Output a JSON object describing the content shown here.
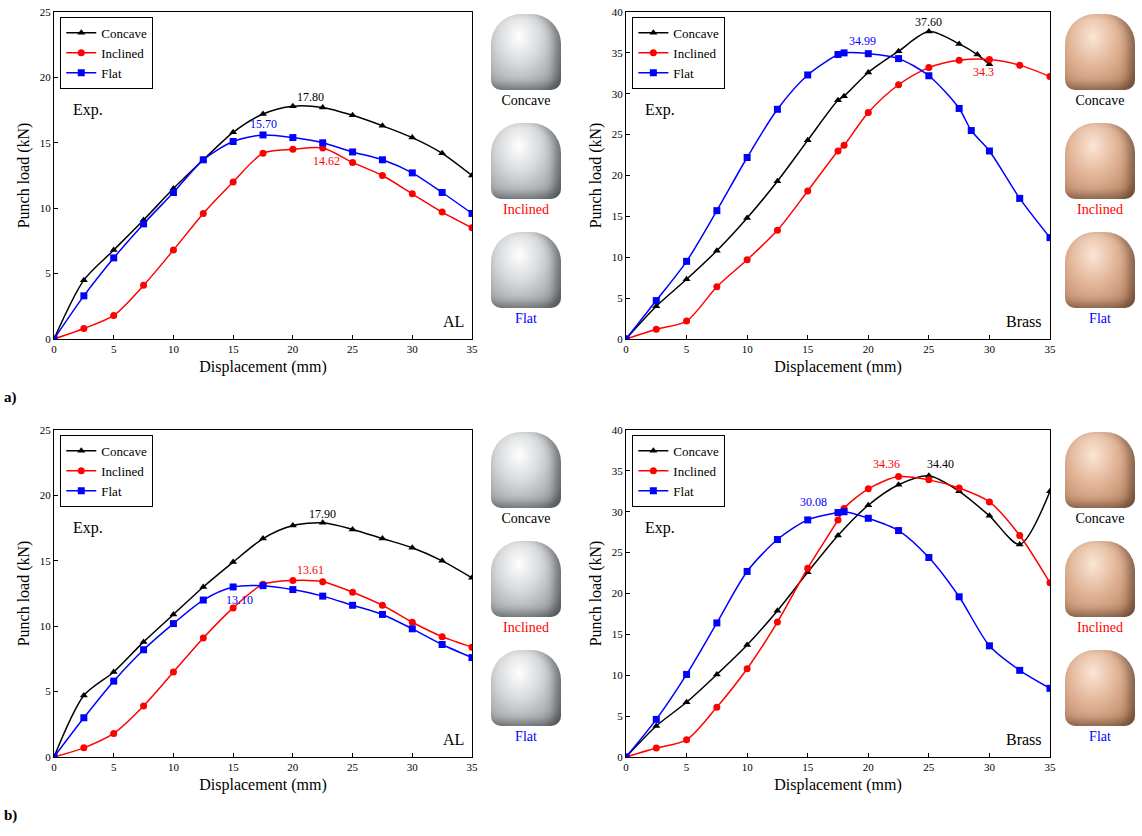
{
  "chart_data": [
    {
      "type": "line",
      "panel": "a)",
      "note": "Exp.",
      "material": "AL",
      "xlabel": "Displacement (mm)",
      "ylabel": "Punch load (kN)",
      "xlim": [
        0,
        35
      ],
      "xticks": [
        0,
        5,
        10,
        15,
        20,
        25,
        30,
        35
      ],
      "ylim": [
        0,
        25
      ],
      "yticks": [
        0,
        5,
        10,
        15,
        20,
        25
      ],
      "grid": false,
      "legend": "upper left",
      "series": [
        {
          "name": "Concave",
          "color": "#000000",
          "marker": "triangle-up",
          "x": [
            0,
            2.5,
            5,
            7.5,
            10,
            12.5,
            15,
            17.5,
            20,
            22.5,
            25,
            27.5,
            30,
            32.5,
            35
          ],
          "values": [
            0,
            4.5,
            6.8,
            9.1,
            11.5,
            13.7,
            15.8,
            17.2,
            17.8,
            17.7,
            17.1,
            16.3,
            15.4,
            14.2,
            12.5
          ]
        },
        {
          "name": "Inclined",
          "color": "#ff0000",
          "marker": "circle",
          "x": [
            0,
            2.5,
            5,
            7.5,
            10,
            12.5,
            15,
            17.5,
            20,
            22.5,
            25,
            27.5,
            30,
            32.5,
            35
          ],
          "values": [
            0,
            0.8,
            1.8,
            4.1,
            6.8,
            9.6,
            12.0,
            14.2,
            14.5,
            14.6,
            13.5,
            12.5,
            11.1,
            9.7,
            8.5
          ]
        },
        {
          "name": "Flat",
          "color": "#0000ff",
          "marker": "square",
          "x": [
            0,
            2.5,
            5,
            7.5,
            10,
            12.5,
            15,
            17.5,
            20,
            22.5,
            25,
            27.5,
            30,
            32.5,
            35
          ],
          "values": [
            0,
            3.3,
            6.2,
            8.8,
            11.2,
            13.7,
            15.1,
            15.6,
            15.4,
            15.0,
            14.3,
            13.7,
            12.7,
            11.2,
            9.6
          ]
        }
      ],
      "annotations": [
        {
          "text": "17.80",
          "x": 21.5,
          "y": 18.5,
          "color": "#000000"
        },
        {
          "text": "15.70",
          "x": 17.5,
          "y": 16.4,
          "color": "#0000ff"
        },
        {
          "text": "14.62",
          "x": 22.8,
          "y": 13.6,
          "color": "#ff0000"
        }
      ],
      "side_labels": [
        {
          "text": "Concave",
          "color": "#000000"
        },
        {
          "text": "Inclined",
          "color": "#ff0000"
        },
        {
          "text": "Flat",
          "color": "#0000ff"
        }
      ]
    },
    {
      "type": "line",
      "note": "Exp.",
      "material": "Brass",
      "xlabel": "Displacement (mm)",
      "ylabel": "Punch load (kN)",
      "xlim": [
        0,
        35
      ],
      "xticks": [
        0,
        5,
        10,
        15,
        20,
        25,
        30,
        35
      ],
      "ylim": [
        0,
        40
      ],
      "yticks": [
        0,
        5,
        10,
        15,
        20,
        25,
        30,
        35,
        40
      ],
      "grid": false,
      "legend": "upper left",
      "series": [
        {
          "name": "Concave",
          "color": "#000000",
          "marker": "triangle-up",
          "x": [
            0,
            2.5,
            5,
            7.5,
            10,
            12.5,
            15,
            17.5,
            18,
            20,
            22.5,
            25,
            27.5,
            29,
            30
          ],
          "values": [
            0,
            4.0,
            7.3,
            10.8,
            14.8,
            19.3,
            24.3,
            29.2,
            29.7,
            32.6,
            35.2,
            37.6,
            36.1,
            34.8,
            33.6
          ]
        },
        {
          "name": "Inclined",
          "color": "#ff0000",
          "marker": "circle",
          "x": [
            0,
            2.5,
            5,
            7.5,
            10,
            12.5,
            15,
            17.5,
            18,
            20,
            22.5,
            25,
            27.5,
            30,
            32.5,
            35
          ],
          "values": [
            0,
            1.2,
            2.2,
            6.4,
            9.7,
            13.3,
            18.1,
            23.0,
            23.7,
            27.7,
            31.1,
            33.2,
            34.1,
            34.2,
            33.5,
            32.1
          ]
        },
        {
          "name": "Flat",
          "color": "#0000ff",
          "marker": "square",
          "x": [
            0,
            2.5,
            5,
            7.5,
            10,
            12.5,
            15,
            17.5,
            18,
            20,
            22.5,
            25,
            27.5,
            28.5,
            30,
            32.5,
            35
          ],
          "values": [
            0,
            4.7,
            9.5,
            15.7,
            22.2,
            28.1,
            32.3,
            34.8,
            35.0,
            34.9,
            34.3,
            32.2,
            28.2,
            25.5,
            23.0,
            17.2,
            12.4
          ]
        }
      ],
      "annotations": [
        {
          "text": "37.60",
          "x": 25,
          "y": 38.8,
          "color": "#000000"
        },
        {
          "text": "34.99",
          "x": 19.5,
          "y": 36.4,
          "color": "#0000ff"
        },
        {
          "text": "34.3",
          "x": 29.5,
          "y": 32.6,
          "color": "#ff0000"
        }
      ],
      "side_labels": [
        {
          "text": "Concave",
          "color": "#000000"
        },
        {
          "text": "Inclined",
          "color": "#ff0000"
        },
        {
          "text": "Flat",
          "color": "#0000ff"
        }
      ]
    },
    {
      "type": "line",
      "panel": "b)",
      "note": "Exp.",
      "material": "AL",
      "xlabel": "Displacement (mm)",
      "ylabel": "Punch load (kN)",
      "xlim": [
        0,
        35
      ],
      "xticks": [
        0,
        5,
        10,
        15,
        20,
        25,
        30,
        35
      ],
      "ylim": [
        0,
        25
      ],
      "yticks": [
        0,
        5,
        10,
        15,
        20,
        25
      ],
      "grid": false,
      "legend": "upper left",
      "series": [
        {
          "name": "Concave",
          "color": "#000000",
          "marker": "triangle-up",
          "x": [
            0,
            2.5,
            5,
            7.5,
            10,
            12.5,
            15,
            17.5,
            20,
            22.5,
            25,
            27.5,
            30,
            32.5,
            35
          ],
          "values": [
            0,
            4.7,
            6.5,
            8.8,
            10.9,
            13.0,
            14.9,
            16.7,
            17.7,
            17.9,
            17.4,
            16.7,
            16.0,
            15.0,
            13.7
          ]
        },
        {
          "name": "Inclined",
          "color": "#ff0000",
          "marker": "circle",
          "x": [
            0,
            2.5,
            5,
            7.5,
            10,
            12.5,
            15,
            17.5,
            20,
            22.5,
            25,
            27.5,
            30,
            32.5,
            35
          ],
          "values": [
            0,
            0.7,
            1.8,
            3.9,
            6.5,
            9.1,
            11.4,
            13.2,
            13.5,
            13.4,
            12.6,
            11.6,
            10.3,
            9.2,
            8.4
          ]
        },
        {
          "name": "Flat",
          "color": "#0000ff",
          "marker": "square",
          "x": [
            0,
            2.5,
            5,
            7.5,
            10,
            12.5,
            15,
            17.5,
            20,
            22.5,
            25,
            27.5,
            30,
            32.5,
            35
          ],
          "values": [
            0,
            3.0,
            5.8,
            8.2,
            10.2,
            12.0,
            13.0,
            13.1,
            12.8,
            12.3,
            11.6,
            10.9,
            9.8,
            8.6,
            7.6
          ]
        }
      ],
      "annotations": [
        {
          "text": "17.90",
          "x": 22.5,
          "y": 18.6,
          "color": "#000000"
        },
        {
          "text": "13.61",
          "x": 21.5,
          "y": 14.3,
          "color": "#ff0000"
        },
        {
          "text": "13.10",
          "x": 15.5,
          "y": 12.0,
          "color": "#0000ff"
        }
      ],
      "side_labels": [
        {
          "text": "Concave",
          "color": "#000000"
        },
        {
          "text": "Inclined",
          "color": "#ff0000"
        },
        {
          "text": "Flat",
          "color": "#0000ff"
        }
      ]
    },
    {
      "type": "line",
      "note": "Exp.",
      "material": "Brass",
      "xlabel": "Displacement (mm)",
      "ylabel": "Punch load (kN)",
      "xlim": [
        0,
        35
      ],
      "xticks": [
        0,
        5,
        10,
        15,
        20,
        25,
        30,
        35
      ],
      "ylim": [
        0,
        40
      ],
      "yticks": [
        0,
        5,
        10,
        15,
        20,
        25,
        30,
        35,
        40
      ],
      "grid": false,
      "legend": "upper left",
      "series": [
        {
          "name": "Concave",
          "color": "#000000",
          "marker": "triangle-up",
          "x": [
            0,
            2.5,
            5,
            7.5,
            10,
            12.5,
            15,
            17.5,
            20,
            22.5,
            25,
            27.5,
            30,
            32.5,
            35
          ],
          "values": [
            0,
            3.8,
            6.7,
            10.1,
            13.7,
            17.9,
            22.6,
            27.1,
            30.8,
            33.3,
            34.4,
            32.5,
            29.5,
            26.0,
            32.5
          ]
        },
        {
          "name": "Inclined",
          "color": "#ff0000",
          "marker": "circle",
          "x": [
            0,
            2.5,
            5,
            7.5,
            10,
            12.5,
            15,
            17.5,
            18,
            20,
            22.5,
            25,
            27.5,
            30,
            32.5,
            35
          ],
          "values": [
            0,
            1.1,
            2.1,
            6.1,
            10.8,
            16.5,
            23.1,
            29.0,
            30.4,
            32.8,
            34.3,
            33.9,
            32.9,
            31.2,
            27.1,
            21.3
          ]
        },
        {
          "name": "Flat",
          "color": "#0000ff",
          "marker": "square",
          "x": [
            0,
            2.5,
            5,
            7.5,
            10,
            12.5,
            15,
            17.5,
            18,
            20,
            22.5,
            25,
            27.5,
            30,
            32.5,
            35
          ],
          "values": [
            0,
            4.6,
            10.1,
            16.4,
            22.7,
            26.6,
            29.0,
            29.9,
            30.0,
            29.2,
            27.7,
            24.4,
            19.6,
            13.6,
            10.6,
            8.4
          ]
        }
      ],
      "annotations": [
        {
          "text": "34.40",
          "x": 26,
          "y": 35.8,
          "color": "#000000"
        },
        {
          "text": "34.36",
          "x": 21.5,
          "y": 35.8,
          "color": "#ff0000"
        },
        {
          "text": "30.08",
          "x": 15.5,
          "y": 31.2,
          "color": "#0000ff"
        }
      ],
      "side_labels": [
        {
          "text": "Concave",
          "color": "#000000"
        },
        {
          "text": "Inclined",
          "color": "#ff0000"
        },
        {
          "text": "Flat",
          "color": "#0000ff"
        }
      ]
    }
  ]
}
